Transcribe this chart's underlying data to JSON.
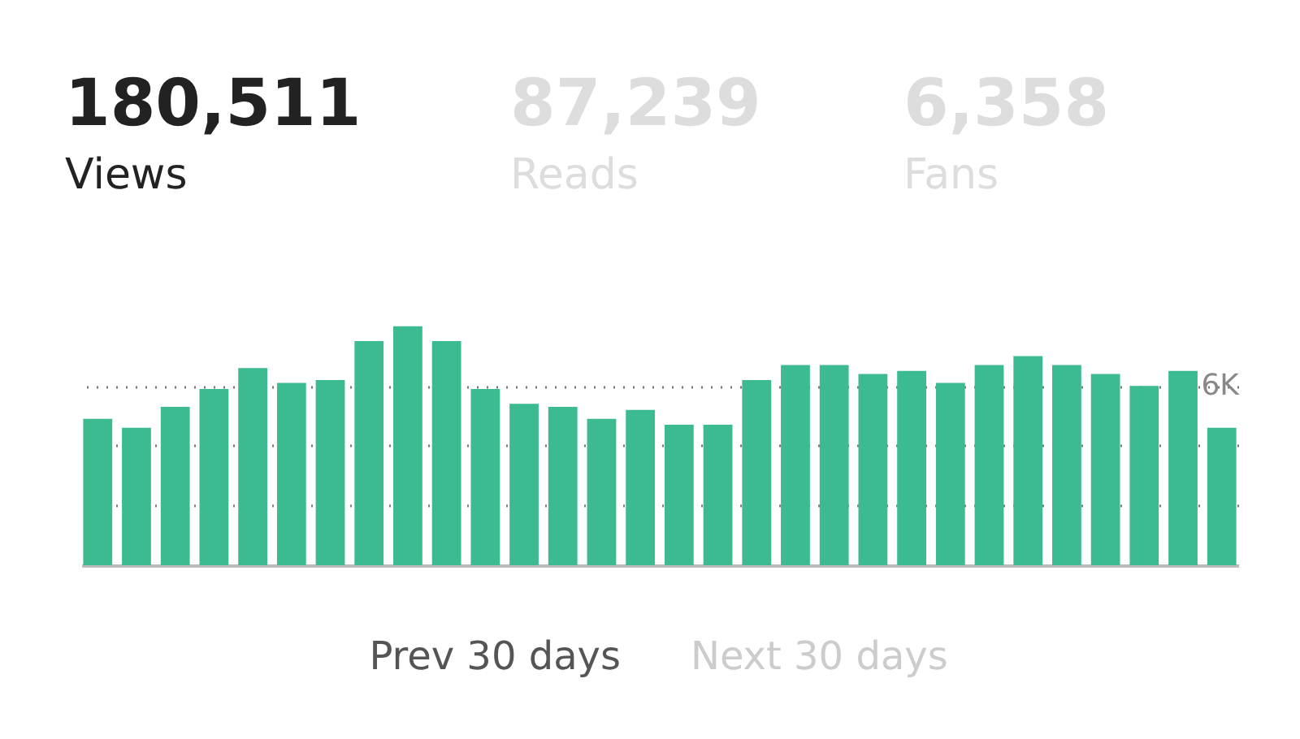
{
  "chart_data": {
    "type": "bar",
    "color": "#3cba92",
    "categories": [
      null,
      null,
      null,
      null,
      null,
      null,
      null,
      null,
      null,
      null,
      null,
      null,
      null,
      null,
      null,
      null,
      null,
      null,
      null,
      null,
      null,
      null,
      null,
      null,
      null,
      null,
      null,
      null,
      null,
      null
    ],
    "values": [
      4.9,
      4.6,
      5.3,
      5.9,
      6.6,
      6.1,
      6.2,
      7.5,
      8.0,
      7.5,
      5.9,
      5.4,
      5.3,
      4.9,
      5.2,
      4.7,
      4.7,
      6.2,
      6.7,
      6.7,
      6.4,
      6.5,
      6.1,
      6.7,
      7.0,
      6.7,
      6.4,
      6.0,
      6.5,
      4.6
    ],
    "ylim": [
      0,
      8.1
    ],
    "yticks": [
      {
        "value": 0,
        "label": null
      },
      {
        "value": 2,
        "label": null
      },
      {
        "value": 4,
        "label": null
      },
      {
        "value": 6,
        "label": "6K"
      }
    ],
    "grid": "y",
    "annotations": [
      "180,511",
      "Views",
      "87,239",
      "Reads",
      "6,358",
      "Fans",
      "Prev 30 days",
      "Next 30 days"
    ]
  }
}
